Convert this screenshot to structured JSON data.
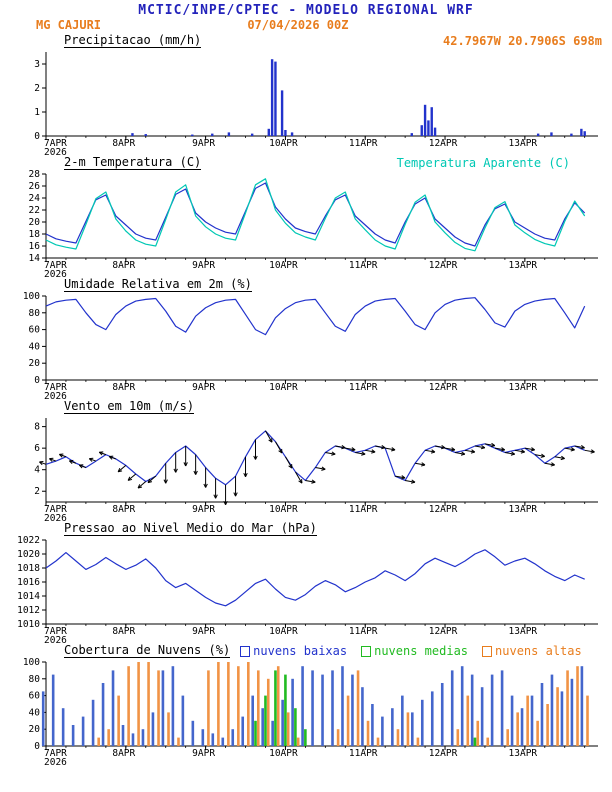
{
  "header": {
    "line1": "MCTIC/INPE/CPTEC - MODELO REGIONAL WRF",
    "station": "MG CAJURI",
    "run": "07/04/2026 00Z",
    "coords": "42.7967W 20.7906S 698m"
  },
  "x_axis": {
    "tmax": 166,
    "tick_hours": [
      0,
      24,
      48,
      72,
      96,
      120,
      144
    ],
    "tick_labels": [
      "7APR",
      "8APR",
      "9APR",
      "10APR",
      "11APR",
      "12APR",
      "13APR"
    ],
    "year_label": "2026"
  },
  "chart_data": [
    {
      "title": "Precipitacao (mm/h)",
      "type": "bars-sparse",
      "ylim": [
        0,
        3.5
      ],
      "yticks": [
        0,
        1,
        2,
        3
      ],
      "color": "#2233cc",
      "bars": [
        [
          26,
          0.12
        ],
        [
          30,
          0.08
        ],
        [
          44,
          0.06
        ],
        [
          50,
          0.1
        ],
        [
          55,
          0.15
        ],
        [
          62,
          0.1
        ],
        [
          67,
          0.3
        ],
        [
          68,
          3.2
        ],
        [
          69,
          3.1
        ],
        [
          71,
          1.9
        ],
        [
          72,
          0.25
        ],
        [
          74,
          0.15
        ],
        [
          110,
          0.12
        ],
        [
          113,
          0.45
        ],
        [
          114,
          1.3
        ],
        [
          115,
          0.65
        ],
        [
          116,
          1.2
        ],
        [
          117,
          0.35
        ],
        [
          148,
          0.1
        ],
        [
          152,
          0.15
        ],
        [
          158,
          0.1
        ],
        [
          161,
          0.3
        ],
        [
          162,
          0.2
        ]
      ]
    },
    {
      "title": "2-m Temperatura (C)",
      "right_label": "Temperatura Aparente (C)",
      "type": "line",
      "ylim": [
        14,
        28
      ],
      "yticks": [
        14,
        16,
        18,
        20,
        22,
        24,
        26,
        28
      ],
      "step": 3,
      "series": [
        {
          "name": "2-m Temperatura (C)",
          "color": "#2233cc",
          "values": [
            18.0,
            17.2,
            16.8,
            16.5,
            20.1,
            23.7,
            24.5,
            21.0,
            19.5,
            18.0,
            17.3,
            17.0,
            20.8,
            24.6,
            25.5,
            21.5,
            20.0,
            19.0,
            18.3,
            18.0,
            21.8,
            25.6,
            26.5,
            22.5,
            20.5,
            19.0,
            18.4,
            18.0,
            21.0,
            23.7,
            24.5,
            21.0,
            19.5,
            18.0,
            17.0,
            16.5,
            20.0,
            23.0,
            24.0,
            20.5,
            19.0,
            17.5,
            16.5,
            16.0,
            19.5,
            22.2,
            23.0,
            20.0,
            19.0,
            18.0,
            17.3,
            17.0,
            20.5,
            23.2,
            21.5
          ]
        },
        {
          "name": "Temperatura Aparente (C)",
          "color": "#00c8b4",
          "values": [
            17.0,
            16.2,
            15.8,
            15.5,
            19.6,
            23.9,
            25.0,
            20.5,
            18.5,
            17.0,
            16.3,
            16.0,
            20.4,
            25.0,
            26.2,
            21.0,
            19.2,
            18.0,
            17.3,
            17.0,
            21.5,
            26.2,
            27.2,
            22.0,
            19.8,
            18.2,
            17.5,
            17.0,
            20.6,
            24.0,
            25.0,
            20.5,
            18.7,
            17.0,
            16.0,
            15.5,
            19.6,
            23.3,
            24.5,
            20.0,
            18.2,
            16.6,
            15.6,
            15.2,
            19.0,
            22.4,
            23.4,
            19.5,
            18.2,
            17.1,
            16.4,
            16.0,
            20.1,
            23.5,
            21.0
          ]
        }
      ]
    },
    {
      "title": "Umidade Relativa em 2m (%)",
      "type": "line",
      "ylim": [
        0,
        100
      ],
      "yticks": [
        0,
        20,
        40,
        60,
        80,
        100
      ],
      "step": 3,
      "series": [
        {
          "name": "Umidade Relativa",
          "color": "#2233cc",
          "values": [
            88,
            93,
            95,
            96,
            80,
            66,
            60,
            78,
            88,
            94,
            96,
            97,
            82,
            64,
            57,
            76,
            86,
            92,
            95,
            96,
            78,
            60,
            54,
            74,
            85,
            92,
            95,
            96,
            80,
            64,
            58,
            78,
            88,
            94,
            96,
            97,
            82,
            66,
            60,
            80,
            90,
            95,
            97,
            98,
            84,
            68,
            63,
            82,
            90,
            94,
            96,
            97,
            80,
            62,
            88
          ]
        }
      ]
    },
    {
      "title": "Vento em 10m (m/s)",
      "type": "line-arrows",
      "ylim": [
        1,
        8.8
      ],
      "yticks": [
        2,
        4,
        6,
        8
      ],
      "step": 3,
      "series": [
        {
          "name": "Vento em 10m",
          "color": "#2233cc",
          "values": [
            4.5,
            4.8,
            5.2,
            4.6,
            4.2,
            4.8,
            5.4,
            5.0,
            4.4,
            3.6,
            2.9,
            3.4,
            4.6,
            5.6,
            6.2,
            5.4,
            4.2,
            3.2,
            2.6,
            3.4,
            5.2,
            6.8,
            7.6,
            6.6,
            5.2,
            3.8,
            3.0,
            4.2,
            5.6,
            6.2,
            6.0,
            5.6,
            5.8,
            6.2,
            6.0,
            3.4,
            3.0,
            4.6,
            5.8,
            6.2,
            6.0,
            5.6,
            5.8,
            6.2,
            6.4,
            6.0,
            5.6,
            5.8,
            6.0,
            5.4,
            4.6,
            5.2,
            6.0,
            6.2,
            5.8
          ]
        }
      ],
      "arrows": {
        "segments": [
          {
            "from": 0,
            "to": 24,
            "dir": 200,
            "len": 7
          },
          {
            "from": 24,
            "to": 34,
            "dir": 140,
            "len": 10
          },
          {
            "from": 34,
            "to": 66,
            "dir": 90,
            "len": 20
          },
          {
            "from": 66,
            "to": 78,
            "dir": 60,
            "len": 13
          },
          {
            "from": 78,
            "to": 166,
            "dir": 10,
            "len": 10
          }
        ]
      }
    },
    {
      "title": "Pressao ao Nivel Medio do Mar (hPa)",
      "type": "line",
      "ylim": [
        1010,
        1022
      ],
      "yticks": [
        1010,
        1012,
        1014,
        1016,
        1018,
        1020,
        1022
      ],
      "step": 3,
      "series": [
        {
          "name": "Pressao ao Nivel Medio do Mar",
          "color": "#2233cc",
          "values": [
            1018.0,
            1019.0,
            1020.2,
            1019.0,
            1017.8,
            1018.5,
            1019.5,
            1018.6,
            1017.8,
            1018.4,
            1019.3,
            1018.0,
            1016.2,
            1015.2,
            1015.8,
            1014.8,
            1013.8,
            1013.0,
            1012.6,
            1013.4,
            1014.6,
            1015.8,
            1016.4,
            1015.0,
            1013.8,
            1013.4,
            1014.2,
            1015.4,
            1016.2,
            1015.6,
            1014.6,
            1015.2,
            1016.0,
            1016.6,
            1017.6,
            1017.0,
            1016.2,
            1017.2,
            1018.6,
            1019.4,
            1018.8,
            1018.2,
            1019.0,
            1020.0,
            1020.6,
            1019.6,
            1018.4,
            1019.0,
            1019.4,
            1018.6,
            1017.6,
            1016.8,
            1016.2,
            1017.0,
            1016.4
          ]
        }
      ]
    },
    {
      "title": "Cobertura de Nuvens (%)",
      "type": "bars-multi",
      "ylim": [
        0,
        100
      ],
      "yticks": [
        0,
        20,
        40,
        60,
        80,
        100
      ],
      "step": 3,
      "legend": [
        {
          "label": "nuvens baixas",
          "color": "#2233cc"
        },
        {
          "label": "nuvens medias",
          "color": "#22bb22"
        },
        {
          "label": "nuvens altas",
          "color": "#e87d1e"
        }
      ],
      "series": [
        {
          "name": "nuvens baixas",
          "color": "#4466cc",
          "values": [
            65,
            85,
            45,
            25,
            35,
            55,
            75,
            90,
            25,
            15,
            20,
            40,
            90,
            95,
            60,
            30,
            20,
            15,
            10,
            20,
            35,
            60,
            45,
            30,
            55,
            80,
            95,
            90,
            85,
            90,
            95,
            85,
            70,
            50,
            35,
            45,
            60,
            40,
            55,
            65,
            75,
            90,
            95,
            85,
            70,
            85,
            90,
            60,
            45,
            60,
            75,
            85,
            65,
            80,
            95
          ]
        },
        {
          "name": "nuvens medias",
          "color": "#22bb22",
          "values": [
            0,
            0,
            0,
            0,
            0,
            0,
            0,
            0,
            0,
            0,
            0,
            0,
            0,
            0,
            0,
            0,
            0,
            0,
            0,
            0,
            0,
            30,
            60,
            90,
            85,
            45,
            20,
            0,
            0,
            0,
            0,
            0,
            0,
            0,
            0,
            0,
            0,
            0,
            0,
            0,
            0,
            0,
            0,
            10,
            0,
            0,
            0,
            0,
            0,
            0,
            0,
            0,
            0,
            0,
            0
          ]
        },
        {
          "name": "nuvens altas",
          "color": "#f19345",
          "values": [
            0,
            0,
            0,
            0,
            0,
            10,
            20,
            60,
            95,
            100,
            100,
            90,
            40,
            10,
            0,
            0,
            90,
            100,
            100,
            95,
            100,
            90,
            80,
            95,
            40,
            10,
            0,
            0,
            0,
            20,
            60,
            90,
            30,
            10,
            0,
            20,
            40,
            10,
            0,
            0,
            0,
            20,
            60,
            30,
            10,
            0,
            20,
            40,
            60,
            30,
            50,
            70,
            90,
            95,
            60
          ]
        }
      ]
    }
  ]
}
